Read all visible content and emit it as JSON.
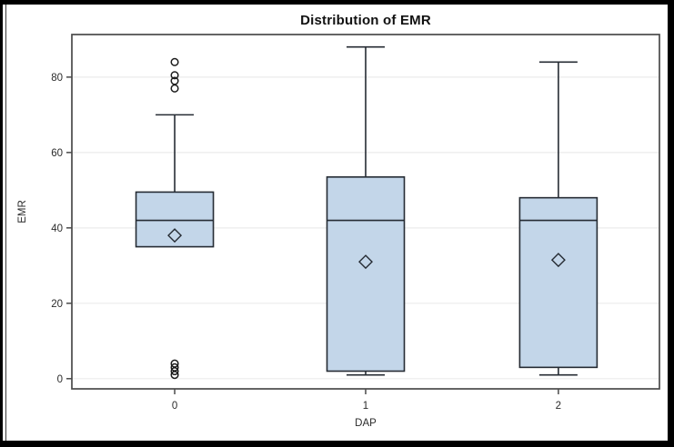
{
  "figure": {
    "title": "Distribution of EMR",
    "xlabel": "DAP",
    "ylabel": "EMR"
  },
  "chart_data": {
    "type": "boxplot",
    "title": "Distribution of EMR",
    "xlabel": "DAP",
    "ylabel": "EMR",
    "categories": [
      "0",
      "1",
      "2"
    ],
    "yticks": [
      0,
      20,
      40,
      60,
      80
    ],
    "ylim": [
      -2.7,
      91.3
    ],
    "grid": true,
    "legend": false,
    "series": [
      {
        "category": "0",
        "whisker_low": 35,
        "q1": 35,
        "median": 42,
        "q3": 49.5,
        "whisker_high": 70,
        "mean": 38,
        "outliers_high": [
          84,
          80.5,
          79,
          77
        ],
        "outliers_low": [
          4,
          3,
          2,
          1
        ]
      },
      {
        "category": "1",
        "whisker_low": 1,
        "q1": 2,
        "median": 42,
        "q3": 53.5,
        "whisker_high": 88,
        "mean": 31,
        "outliers_high": [],
        "outliers_low": []
      },
      {
        "category": "2",
        "whisker_low": 1,
        "q1": 3,
        "median": 42,
        "q3": 48,
        "whisker_high": 84,
        "mean": 31.5,
        "outliers_high": [],
        "outliers_low": []
      }
    ],
    "colors": {
      "box_fill": "#c3d6e9",
      "box_stroke": "#252b33",
      "mean_marker": "#252b33",
      "outlier": "#1c1c1c",
      "gridline": "#ebebeb",
      "axis": "#3d3d3d",
      "frame": "#4a4a4a",
      "text": "#2b2b2b",
      "background": "#ffffff"
    }
  }
}
